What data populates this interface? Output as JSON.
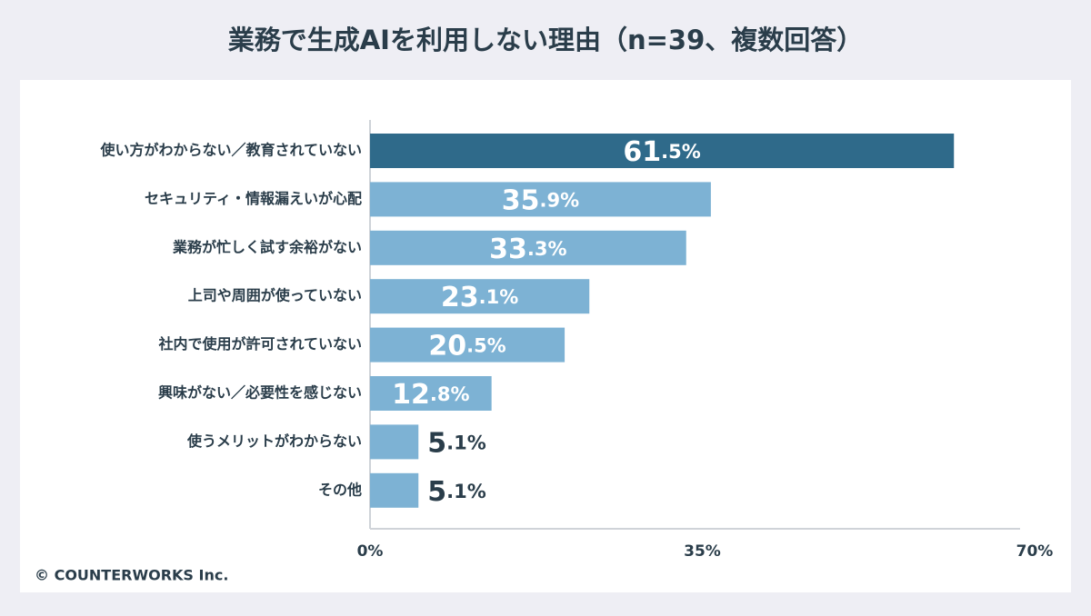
{
  "chart_data": {
    "type": "barh",
    "title": "業務で生成AIを利用しない理由（n=39、複数回答）",
    "categories": [
      "使い方がわからない／教育されていない",
      "セキュリティ・情報漏えいが心配",
      "業務が忙しく試す余裕がない",
      "上司や周囲が使っていない",
      "社内で使用が許可されていない",
      "興味がない／必要性を感じない",
      "使うメリットがわからない",
      "その他"
    ],
    "values": [
      61.5,
      35.9,
      33.3,
      23.1,
      20.5,
      12.8,
      5.1,
      5.1
    ],
    "value_labels": [
      "61.5%",
      "35.9%",
      "33.3%",
      "23.1%",
      "20.5%",
      "12.8%",
      "5.1%",
      "5.1%"
    ],
    "colors": [
      "#2f6a8a",
      "#7db2d4",
      "#7db2d4",
      "#7db2d4",
      "#7db2d4",
      "#7db2d4",
      "#7db2d4",
      "#7db2d4"
    ],
    "xlim": [
      0,
      70
    ],
    "xticks": [
      {
        "value": 0,
        "label": "0%"
      },
      {
        "value": 35,
        "label": "35%"
      },
      {
        "value": 70,
        "label": "70%"
      }
    ],
    "grid": false,
    "source": "© COUNTERWORKS Inc."
  }
}
